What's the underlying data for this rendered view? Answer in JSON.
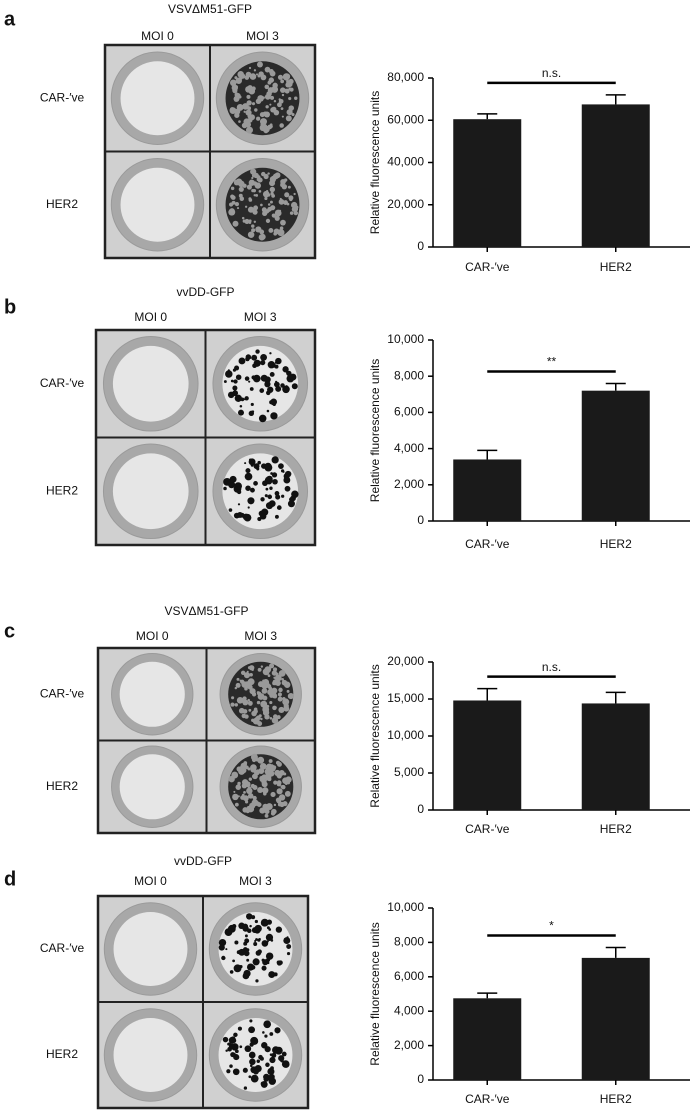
{
  "chart_data": [
    {
      "type": "bar",
      "panel": "a",
      "title": "VSVΔM51-GFP",
      "plate_columns": [
        "MOI 0",
        "MOI 3"
      ],
      "plate_rows": [
        "CAR-′ve",
        "HER2"
      ],
      "ylabel": "Relative fluorescence units",
      "categories": [
        "CAR-′ve",
        "HER2"
      ],
      "values": [
        60500,
        67500
      ],
      "errors": [
        2500,
        4500
      ],
      "significance": "n.s.",
      "color": "#1a1a1a",
      "ylim": [
        0,
        80000
      ],
      "yticks": [
        0,
        {
          "value": 20000,
          "label": "20,000"
        },
        {
          "value": 40000,
          "label": "40,000"
        },
        {
          "value": 60000,
          "label": "60,000"
        },
        {
          "value": 80000,
          "label": "80,000"
        }
      ]
    },
    {
      "type": "bar",
      "panel": "b",
      "title": "vvDD-GFP",
      "plate_columns": [
        "MOI 0",
        "MOI 3"
      ],
      "plate_rows": [
        "CAR-′ve",
        "HER2"
      ],
      "ylabel": "Relative fluorescence units",
      "categories": [
        "CAR-′ve",
        "HER2"
      ],
      "values": [
        3400,
        7200
      ],
      "errors": [
        500,
        400
      ],
      "significance": "**",
      "color": "#1a1a1a",
      "ylim": [
        0,
        10000
      ],
      "yticks": [
        0,
        {
          "value": 2000,
          "label": "2,000"
        },
        {
          "value": 4000,
          "label": "4,000"
        },
        {
          "value": 6000,
          "label": "6,000"
        },
        {
          "value": 8000,
          "label": "8,000"
        },
        {
          "value": 10000,
          "label": "10,000"
        }
      ]
    },
    {
      "type": "bar",
      "panel": "c",
      "title": "VSVΔM51-GFP",
      "plate_columns": [
        "MOI 0",
        "MOI 3"
      ],
      "plate_rows": [
        "CAR-′ve",
        "HER2"
      ],
      "ylabel": "Relative fluorescence units",
      "categories": [
        "CAR-′ve",
        "HER2"
      ],
      "values": [
        14800,
        14400
      ],
      "errors": [
        1600,
        1500
      ],
      "significance": "n.s.",
      "color": "#1a1a1a",
      "ylim": [
        0,
        20000
      ],
      "yticks": [
        0,
        {
          "value": 5000,
          "label": "5,000"
        },
        {
          "value": 10000,
          "label": "10,000"
        },
        {
          "value": 15000,
          "label": "15,000"
        },
        {
          "value": 20000,
          "label": "20,000"
        }
      ]
    },
    {
      "type": "bar",
      "panel": "d",
      "title": "vvDD-GFP",
      "plate_columns": [
        "MOI 0",
        "MOI 3"
      ],
      "plate_rows": [
        "CAR-′ve",
        "HER2"
      ],
      "ylabel": "Relative fluorescence units",
      "categories": [
        "CAR-′ve",
        "HER2"
      ],
      "values": [
        4750,
        7100
      ],
      "errors": [
        300,
        600
      ],
      "significance": "*",
      "color": "#1a1a1a",
      "ylim": [
        0,
        10000
      ],
      "yticks": [
        0,
        {
          "value": 2000,
          "label": "2,000"
        },
        {
          "value": 4000,
          "label": "4,000"
        },
        {
          "value": 6000,
          "label": "6,000"
        },
        {
          "value": 8000,
          "label": "8,000"
        },
        {
          "value": 10000,
          "label": "10,000"
        }
      ]
    }
  ]
}
